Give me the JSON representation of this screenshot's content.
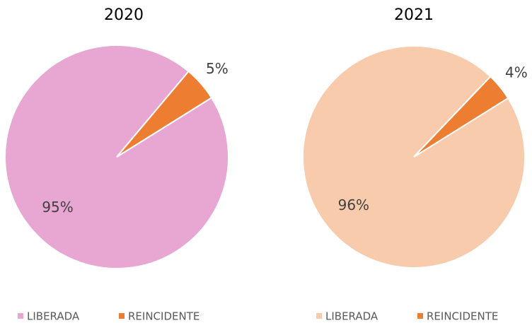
{
  "chart_data": [
    {
      "type": "pie",
      "title": "2020",
      "categories": [
        "LIBERADA",
        "REINCIDENTE"
      ],
      "values": [
        95,
        5
      ],
      "value_labels": [
        "95%",
        "5%"
      ],
      "colors": [
        "#e8a6d3",
        "#ed7d31"
      ]
    },
    {
      "type": "pie",
      "title": "2021",
      "categories": [
        "LIBERADA",
        "REINCIDENTE"
      ],
      "values": [
        96,
        4
      ],
      "value_labels": [
        "96%",
        "4%"
      ],
      "colors": [
        "#f8cbad",
        "#ed7d31"
      ]
    }
  ]
}
